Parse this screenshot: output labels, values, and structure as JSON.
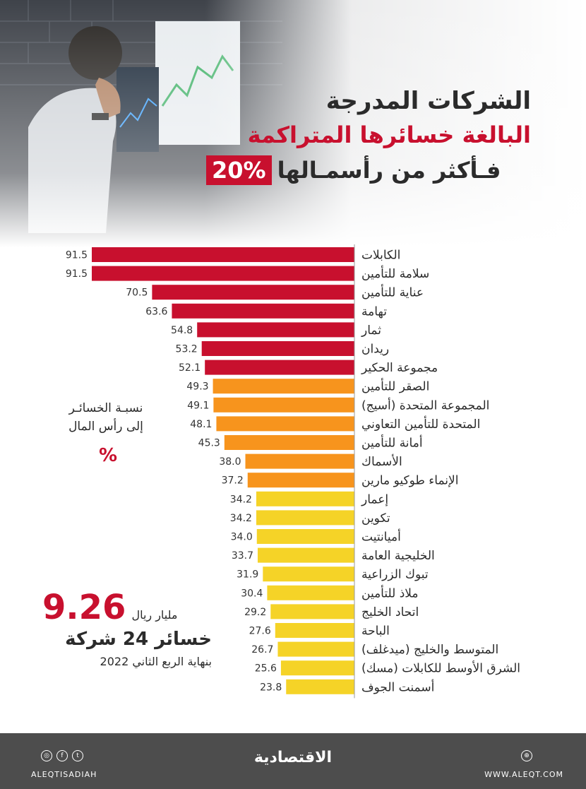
{
  "header": {
    "title_line1": "الشركات المدرجة",
    "title_line2": "البالغة خسائرها المتراكمة",
    "title_line3_text": "فـأكثر من رأسمـالها",
    "title_line3_pct": "20%"
  },
  "annotations": {
    "ratio_label_line1": "نسبـة الخسائـر",
    "ratio_label_line2": "إلى رأس المال",
    "ratio_unit": "%"
  },
  "summary": {
    "total_value": "9.26",
    "total_unit": "مليار ريال",
    "total_label": "خسائر 24 شركة",
    "period": "بنهاية الربع الثاني 2022"
  },
  "footer": {
    "brand": "الاقتصادية",
    "handle": "ALEQTISADIAH",
    "site": "WWW.ALEQT.COM"
  },
  "colors": {
    "red": "#c8102e",
    "orange": "#f7941d",
    "yellow": "#f5d327",
    "footer_bg": "#4d4d4d"
  },
  "chart_data": {
    "type": "bar",
    "orientation": "horizontal",
    "categories": [
      "الكابلات",
      "سلامة للتأمين",
      "عناية للتأمين",
      "تهامة",
      "ثمار",
      "ريدان",
      "مجموعة الحكير",
      "الصقر للتأمين",
      "المجموعة المتحدة (أسيج)",
      "المتحدة للتأمين التعاوني",
      "أمانة للتأمين",
      "الأسماك",
      "الإنماء طوكيو مارين",
      "إعمار",
      "تكوين",
      "أميانتيت",
      "الخليجية العامة",
      "تبوك الزراعية",
      "ملاذ للتأمين",
      "اتحاد الخليج",
      "الباحة",
      "المتوسط والخليج (ميدغلف)",
      "الشرق الأوسط للكابلات (مسك)",
      "أسمنت الجوف"
    ],
    "values": [
      91.5,
      91.5,
      70.5,
      63.6,
      54.8,
      53.2,
      52.1,
      49.3,
      49.1,
      48.1,
      45.3,
      38.0,
      37.2,
      34.2,
      34.2,
      34.0,
      33.7,
      31.9,
      30.4,
      29.2,
      27.6,
      26.7,
      25.6,
      23.8
    ],
    "value_labels": [
      "91.5",
      "91.5",
      "70.5",
      "63.6",
      "54.8",
      "53.2",
      "52.1",
      "49.3",
      "49.1",
      "48.1",
      "45.3",
      "38.0",
      "37.2",
      "34.2",
      "34.2",
      "34.0",
      "33.7",
      "31.9",
      "30.4",
      "29.2",
      "27.6",
      "26.7",
      "25.6",
      "23.8"
    ],
    "color_groups": [
      "red",
      "red",
      "red",
      "red",
      "red",
      "red",
      "red",
      "orange",
      "orange",
      "orange",
      "orange",
      "orange",
      "orange",
      "yellow",
      "yellow",
      "yellow",
      "yellow",
      "yellow",
      "yellow",
      "yellow",
      "yellow",
      "yellow",
      "yellow",
      "yellow"
    ]
  }
}
